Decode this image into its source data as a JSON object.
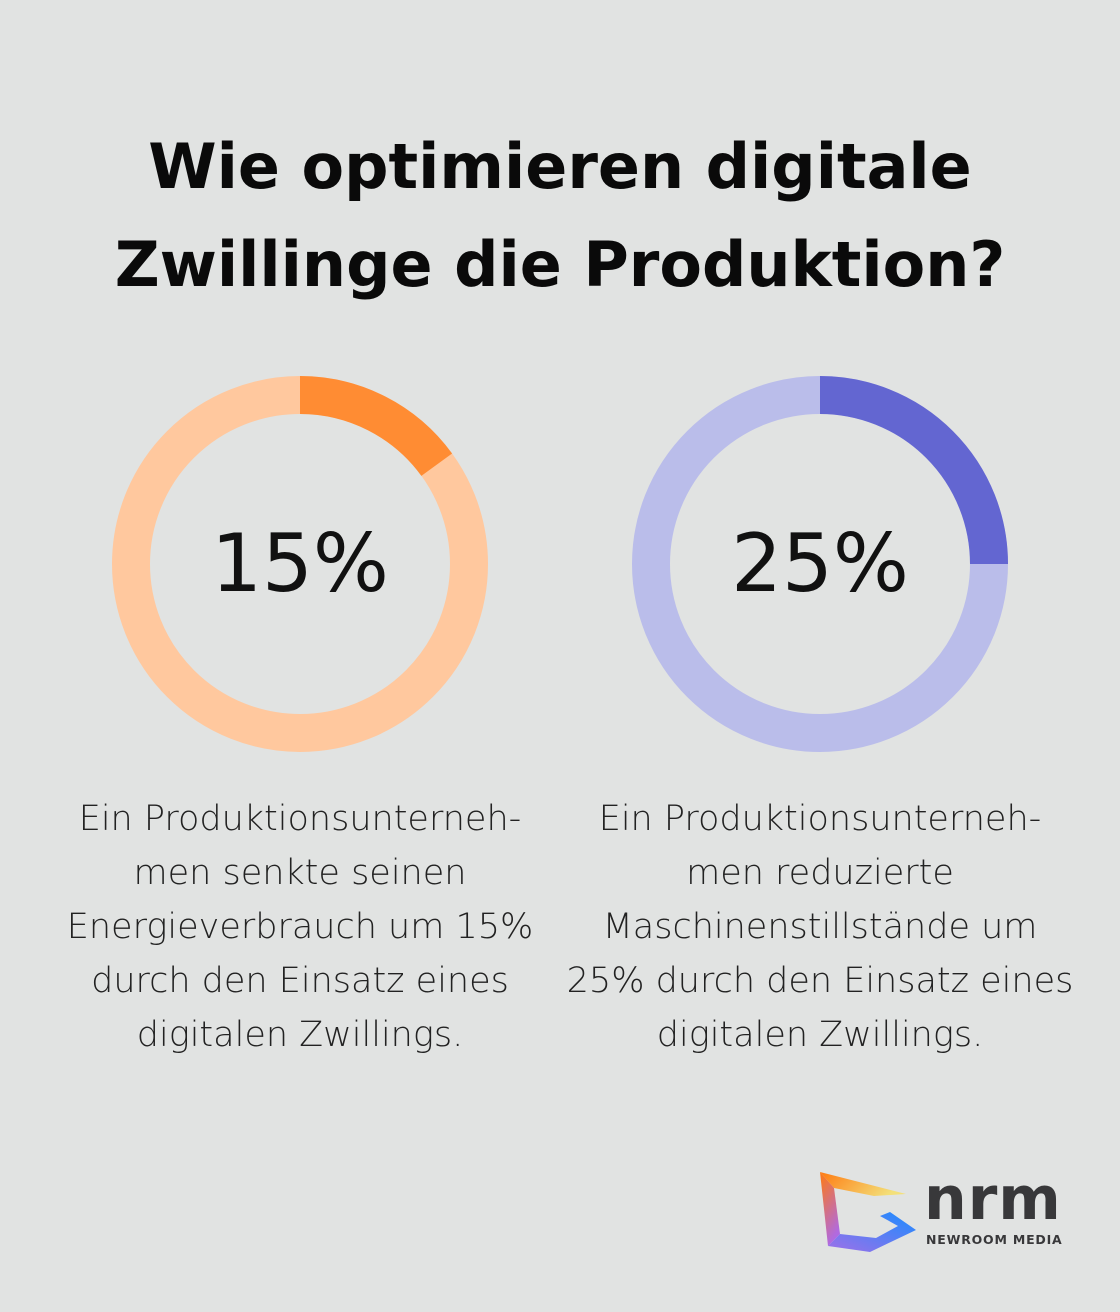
{
  "title": "Wie optimieren digitale Zwillinge die Produktion?",
  "chart_data": [
    {
      "type": "pie",
      "variant": "donut",
      "label": "15%",
      "value": 15,
      "max": 100,
      "colors": {
        "value": "#ff8c33",
        "remainder": "#ffc89e"
      },
      "description": "Ein Produktionsunterneh-men senkte seinen Energieverbrauch um 15% durch den Einsatz eines digitalen Zwillings."
    },
    {
      "type": "pie",
      "variant": "donut",
      "label": "25%",
      "value": 25,
      "max": 100,
      "colors": {
        "value": "#6366d1",
        "remainder": "#babdea"
      },
      "description": "Ein Produktionsunterneh-men reduzierte Maschinenstillstände um 25% durch den Einsatz eines digitalen Zwillings."
    }
  ],
  "logo": {
    "mark": "nrm",
    "name": "NEWROOM MEDIA"
  }
}
